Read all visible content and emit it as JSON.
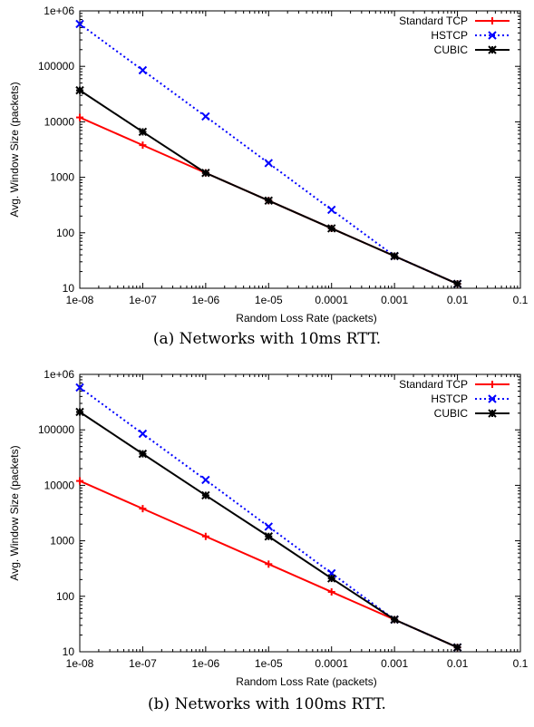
{
  "chart_data": [
    {
      "type": "line",
      "caption": "(a) Networks with 10ms RTT.",
      "xlabel": "Random Loss Rate (packets)",
      "ylabel": "Avg. Window Size (packets)",
      "x_scale": "log",
      "y_scale": "log",
      "xlim": [
        1e-08,
        0.1
      ],
      "ylim": [
        10,
        1000000
      ],
      "x_ticks": [
        "1e-08",
        "1e-07",
        "1e-06",
        "1e-05",
        "0.0001",
        "0.001",
        "0.01",
        "0.1"
      ],
      "y_ticks": [
        "10",
        "100",
        "1000",
        "10000",
        "100000",
        "1e+06"
      ],
      "legend_position": "top-right",
      "x": [
        1e-08,
        1e-07,
        1e-06,
        1e-05,
        0.0001,
        0.001,
        0.01
      ],
      "series": [
        {
          "name": "Standard TCP",
          "color": "#ff0000",
          "dash": "solid",
          "marker": "plus",
          "values": [
            12000,
            3800,
            1200,
            380,
            120,
            38,
            12
          ]
        },
        {
          "name": "HSTCP",
          "color": "#0000ff",
          "dash": "dotted",
          "marker": "x",
          "values": [
            580000,
            85000,
            12500,
            1800,
            260,
            38,
            12
          ]
        },
        {
          "name": "CUBIC",
          "color": "#000000",
          "dash": "solid",
          "marker": "star",
          "values": [
            37000,
            6600,
            1200,
            380,
            120,
            38,
            12
          ]
        }
      ]
    },
    {
      "type": "line",
      "caption": "(b) Networks with 100ms RTT.",
      "xlabel": "Random Loss Rate (packets)",
      "ylabel": "Avg. Window Size (packets)",
      "x_scale": "log",
      "y_scale": "log",
      "xlim": [
        1e-08,
        0.1
      ],
      "ylim": [
        10,
        1000000
      ],
      "x_ticks": [
        "1e-08",
        "1e-07",
        "1e-06",
        "1e-05",
        "0.0001",
        "0.001",
        "0.01",
        "0.1"
      ],
      "y_ticks": [
        "10",
        "100",
        "1000",
        "10000",
        "100000",
        "1e+06"
      ],
      "legend_position": "top-right",
      "x": [
        1e-08,
        1e-07,
        1e-06,
        1e-05,
        0.0001,
        0.001,
        0.01
      ],
      "series": [
        {
          "name": "Standard TCP",
          "color": "#ff0000",
          "dash": "solid",
          "marker": "plus",
          "values": [
            12000,
            3800,
            1200,
            380,
            120,
            38,
            12
          ]
        },
        {
          "name": "HSTCP",
          "color": "#0000ff",
          "dash": "dotted",
          "marker": "x",
          "values": [
            580000,
            85000,
            12500,
            1800,
            260,
            38,
            12
          ]
        },
        {
          "name": "CUBIC",
          "color": "#000000",
          "dash": "solid",
          "marker": "star",
          "values": [
            210000,
            37000,
            6600,
            1200,
            210,
            38,
            12
          ]
        }
      ]
    }
  ]
}
